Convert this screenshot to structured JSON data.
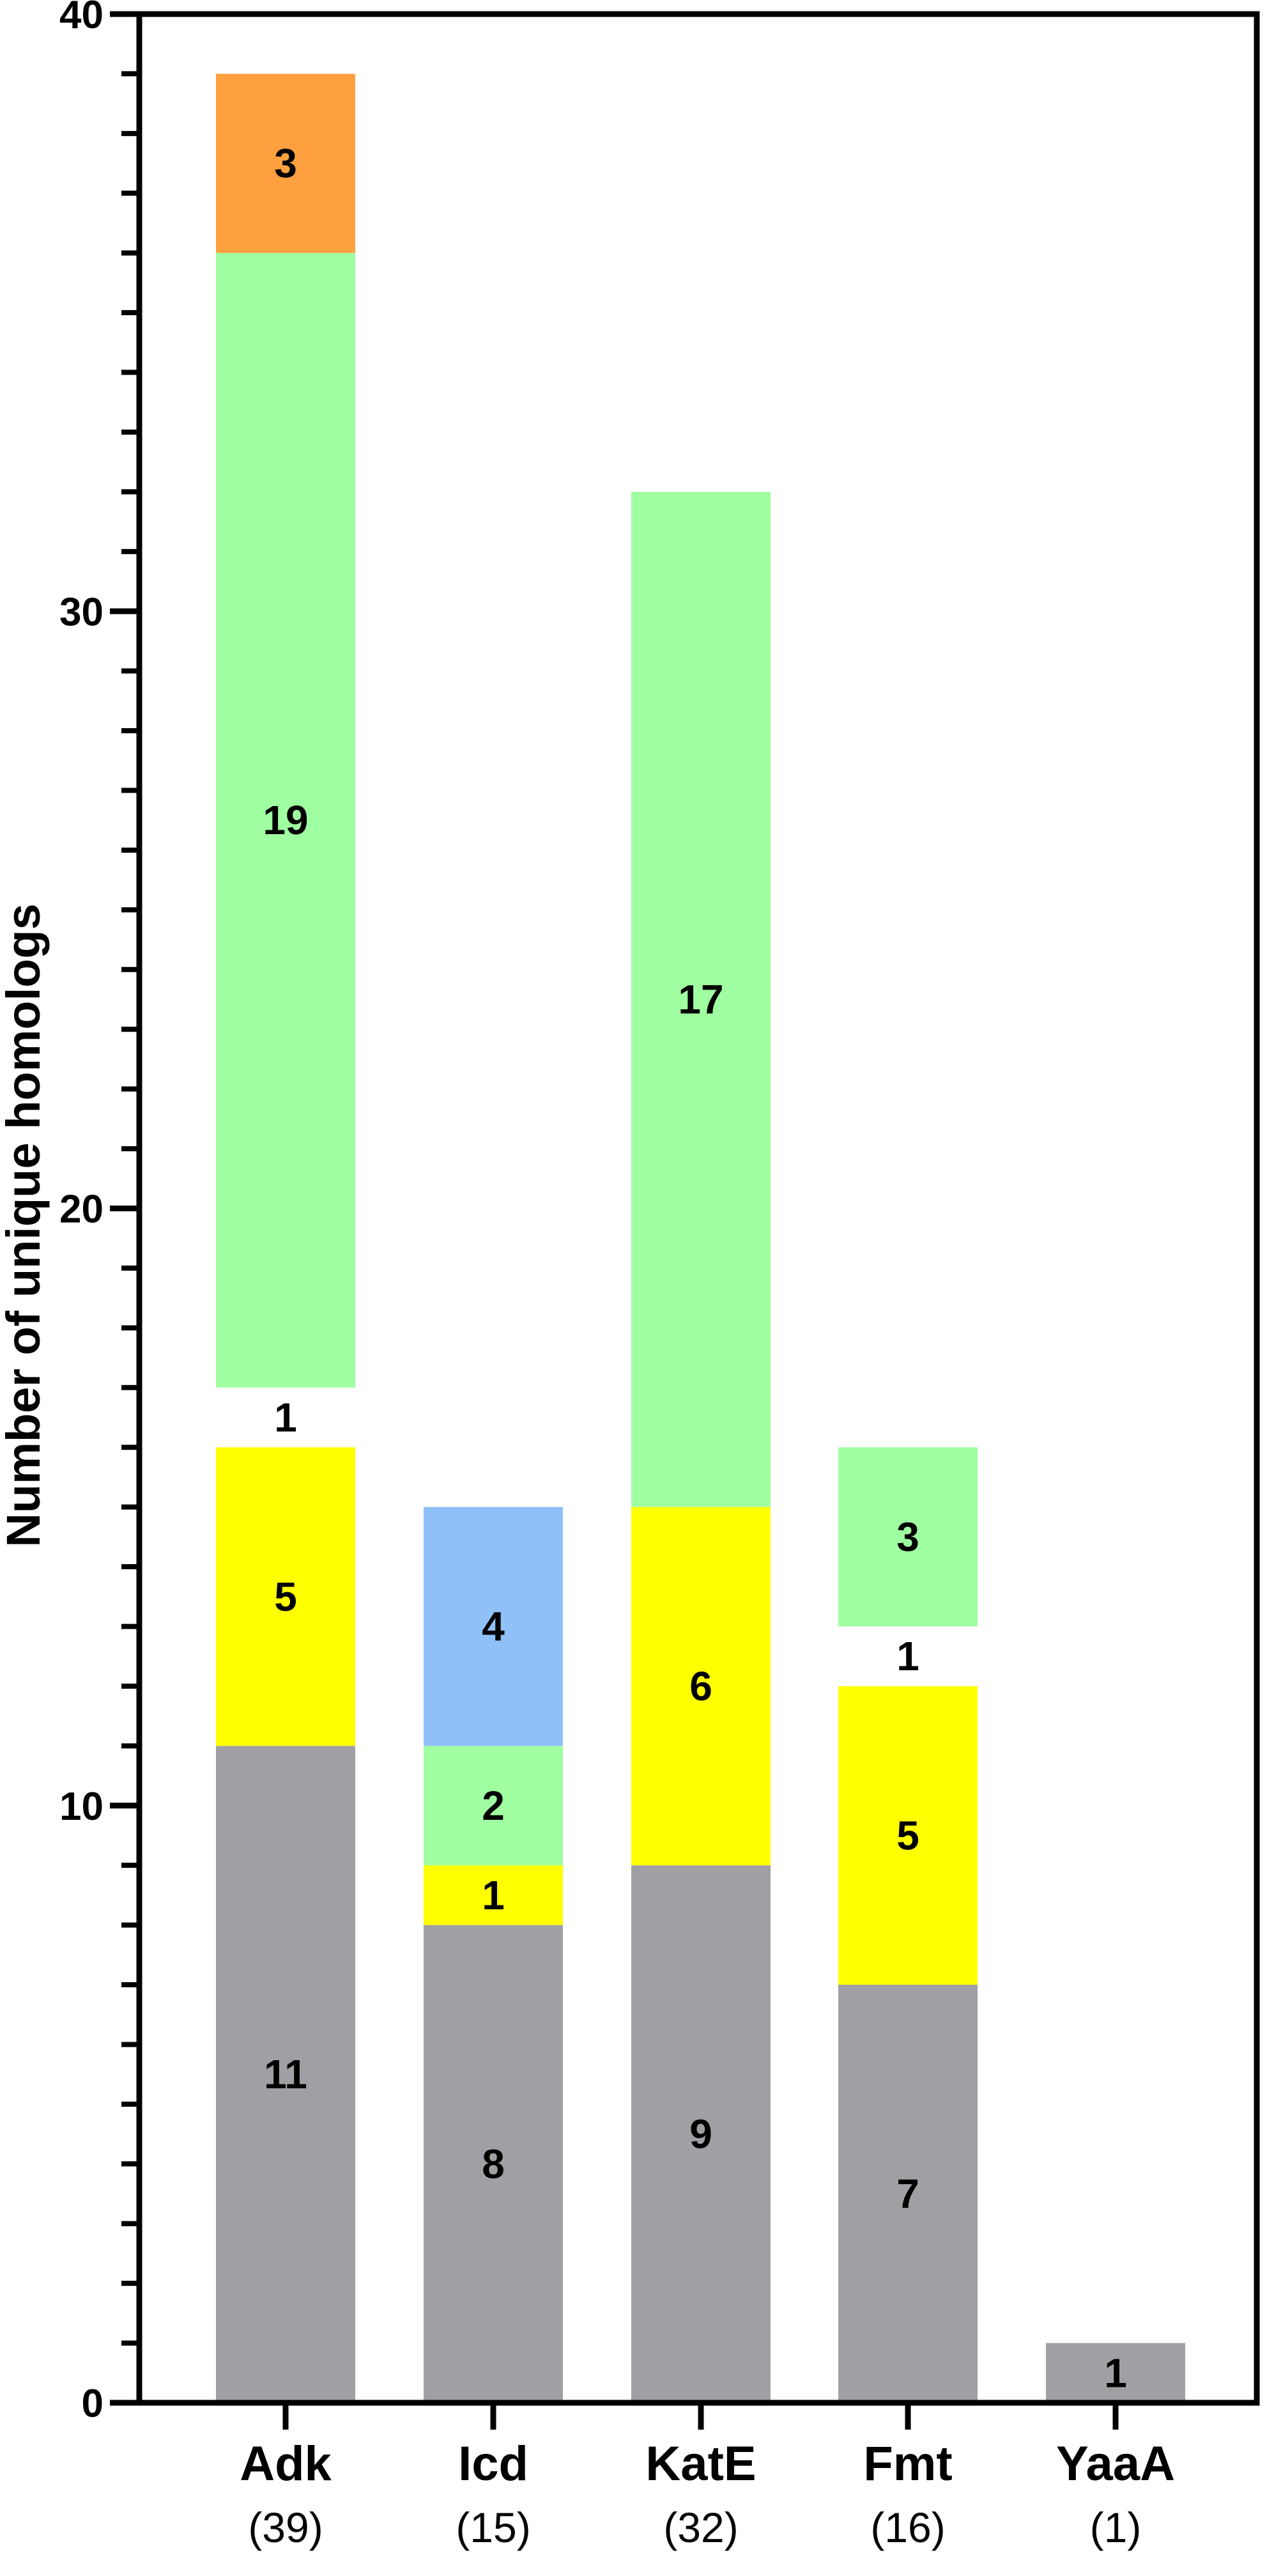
{
  "chart_data": {
    "type": "bar",
    "stacked": true,
    "ylabel": "Number of unique homologs",
    "ylim": [
      0,
      40
    ],
    "y_major_ticks": [
      0,
      10,
      20,
      30,
      40
    ],
    "y_minor_tick_step": 1,
    "grid": false,
    "categories": [
      {
        "label": "Adk",
        "sublabel": "(39)"
      },
      {
        "label": "Icd",
        "sublabel": "(15)"
      },
      {
        "label": "KatE",
        "sublabel": "(32)"
      },
      {
        "label": "Fmt",
        "sublabel": "(16)"
      },
      {
        "label": "YaaA",
        "sublabel": "(1)"
      }
    ],
    "stacks": [
      [
        {
          "value": 11,
          "label": "11",
          "color": "#a0a0a4"
        },
        {
          "value": 5,
          "label": "5",
          "color": "#ffff00"
        },
        {
          "value": 1,
          "label": "1",
          "color": "#ffffff"
        },
        {
          "value": 19,
          "label": "19",
          "color": "#a0ffa0"
        },
        {
          "value": 3,
          "label": "3",
          "color": "#ffa040"
        }
      ],
      [
        {
          "value": 8,
          "label": "8",
          "color": "#a0a0a4"
        },
        {
          "value": 1,
          "label": "1",
          "color": "#ffff00"
        },
        {
          "value": 2,
          "label": "2",
          "color": "#a0ffa0"
        },
        {
          "value": 4,
          "label": "4",
          "color": "#90c0f8"
        }
      ],
      [
        {
          "value": 9,
          "label": "9",
          "color": "#a0a0a4"
        },
        {
          "value": 6,
          "label": "6",
          "color": "#ffff00"
        },
        {
          "value": 17,
          "label": "17",
          "color": "#a0ffa0"
        }
      ],
      [
        {
          "value": 7,
          "label": "7",
          "color": "#a0a0a4"
        },
        {
          "value": 5,
          "label": "5",
          "color": "#ffff00"
        },
        {
          "value": 1,
          "label": "1",
          "color": "#ffffff"
        },
        {
          "value": 3,
          "label": "3",
          "color": "#a0ffa0"
        }
      ],
      [
        {
          "value": 1,
          "label": "1",
          "color": "#a0a0a4"
        }
      ]
    ]
  }
}
